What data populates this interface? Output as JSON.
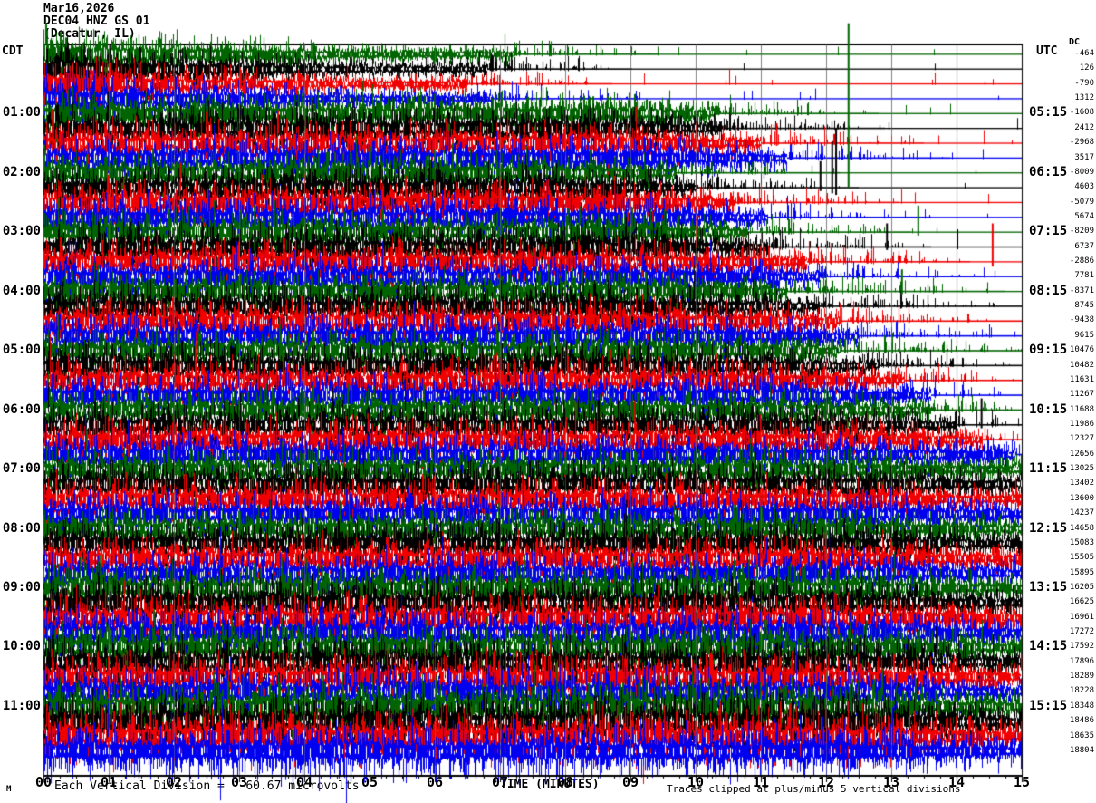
{
  "header": {
    "date": "Mar16,2026",
    "station": "DEC04 HNZ GS 01",
    "location": "(Decatur, IL)"
  },
  "axes": {
    "left_tz": "CDT",
    "right_tz": "UTC",
    "dc_label": "DC",
    "left_times": [
      "01:00",
      "02:00",
      "03:00",
      "04:00",
      "05:00",
      "06:00",
      "07:00",
      "08:00",
      "09:00",
      "10:00",
      "11:00"
    ],
    "right_times": [
      "05:15",
      "06:15",
      "07:15",
      "08:15",
      "09:15",
      "10:15",
      "11:15",
      "12:15",
      "13:15",
      "14:15",
      "15:15"
    ],
    "dc_values": [
      "-464",
      "126",
      "-790",
      "1312",
      "-1608",
      "2412",
      "-2968",
      "3517",
      "-8009",
      "4603",
      "-5079",
      "5674",
      "-8209",
      "6737",
      "-2886",
      "7781",
      "-8371",
      "8745",
      "-9438",
      "9615",
      "10476",
      "10482",
      "11631",
      "11267",
      "11688",
      "11986",
      "12327",
      "12656",
      "13025",
      "13402",
      "13600",
      "14237",
      "14658",
      "15083",
      "15505",
      "15895",
      "16205",
      "16625",
      "16961",
      "17272",
      "17592",
      "17896",
      "18289",
      "18228",
      "18348",
      "18486",
      "18635",
      "18804"
    ],
    "x_ticks": [
      "00",
      "01",
      "02",
      "03",
      "04",
      "05",
      "06",
      "07",
      "08",
      "09",
      "10",
      "11",
      "12",
      "13",
      "14",
      "15"
    ],
    "x_title": "TIME (MINUTES)"
  },
  "footer": {
    "marker": "M",
    "scale_note": "Each Vertical Division =   60.67 microvolts",
    "clip_note": "Traces clipped at plus/minus 5 vertical divisions"
  },
  "chart_data": {
    "type": "line",
    "subtype": "helicorder-seismogram",
    "title": "DEC04 HNZ GS 01 (Decatur, IL) Mar16,2026",
    "xlabel": "TIME (MINUTES)",
    "x_range_minutes": [
      0,
      15
    ],
    "grid": "vertical line every minute",
    "grid_color": "#808080",
    "rows": 48,
    "minutes_per_row": 15,
    "first_row_start_cdt": "00:00",
    "last_row_start_cdt": "11:45",
    "utc_offset": "CDT = UTC-5",
    "color_cycle": [
      "green",
      "black",
      "red",
      "blue"
    ],
    "trace_colors": {
      "green": "#006400",
      "black": "#000000",
      "red": "#f00000",
      "blue": "#0000f0"
    },
    "amplitude_scale": "each vertical division = 60.67 microvolts, traces clipped at +/-5 divisions",
    "rows_noise_end_min": [
      7.2,
      6.8,
      6.5,
      6.9,
      10.3,
      10.4,
      11.0,
      11.4,
      9.7,
      10.0,
      10.6,
      11.1,
      10.8,
      11.1,
      11.7,
      11.9,
      11.4,
      11.9,
      12.2,
      12.5,
      12.2,
      12.8,
      13.2,
      13.6,
      13.6,
      14.0,
      14.4,
      14.9,
      15,
      15,
      15,
      15,
      15,
      15,
      15,
      15,
      15,
      15,
      15,
      15,
      15,
      15,
      15,
      15,
      15,
      15,
      15,
      15
    ],
    "events": [
      {
        "row": 8,
        "minute": 12.33,
        "amp_div": 10.1,
        "color": "green",
        "desc": "large spike rising above plot top"
      },
      {
        "row": 9,
        "minute": 11.9,
        "amp_div": 1.8,
        "color": "black"
      },
      {
        "row": 9,
        "minute": 12.08,
        "amp_div": 3.1,
        "color": "black"
      },
      {
        "row": 9,
        "minute": 12.14,
        "amp_div": 4.0,
        "color": "black"
      },
      {
        "row": 6,
        "minute": 11.23,
        "amp_div": 1.35,
        "color": "red"
      },
      {
        "row": 12,
        "minute": 13.4,
        "amp_div": 1.8,
        "color": "green"
      },
      {
        "row": 13,
        "minute": 12.92,
        "amp_div": 1.6,
        "color": "black"
      },
      {
        "row": 13,
        "minute": 14.0,
        "amp_div": 1.2,
        "color": "black"
      },
      {
        "row": 14,
        "minute": 14.54,
        "amp_div": 2.6,
        "color": "red"
      },
      {
        "row": 16,
        "minute": 13.15,
        "amp_div": 1.5,
        "color": "green"
      },
      {
        "row": 25,
        "minute": 14.37,
        "amp_div": 1.8,
        "color": "black"
      }
    ]
  }
}
